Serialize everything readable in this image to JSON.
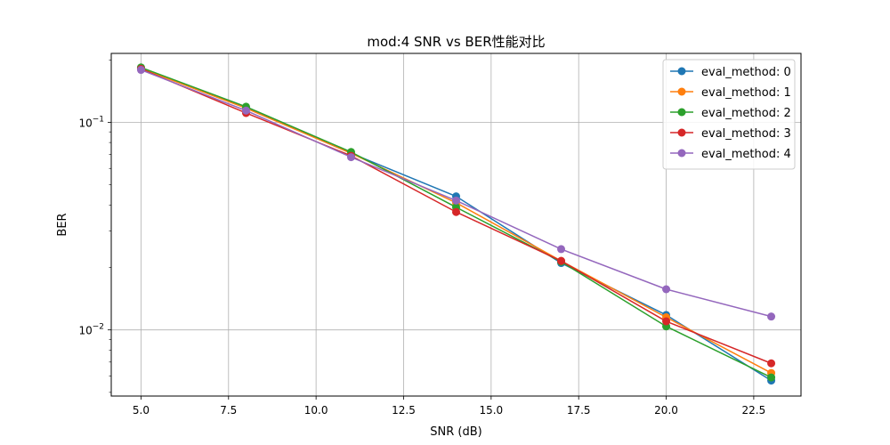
{
  "chart_data": {
    "type": "line",
    "title": "mod:4 SNR vs BER性能对比",
    "xlabel": "SNR (dB)",
    "ylabel": "BER",
    "yscale": "log",
    "xlim": [
      4.15,
      23.85
    ],
    "ylim": [
      0.0048,
      0.215
    ],
    "x_ticks": [
      5.0,
      7.5,
      10.0,
      12.5,
      15.0,
      17.5,
      20.0,
      22.5
    ],
    "x_tick_labels": [
      "5.0",
      "7.5",
      "10.0",
      "12.5",
      "15.0",
      "17.5",
      "20.0",
      "22.5"
    ],
    "y_ticks": [
      0.01,
      0.1
    ],
    "y_tick_labels": [
      {
        "base": "10",
        "exp": "−2"
      },
      {
        "base": "10",
        "exp": "−1"
      }
    ],
    "grid": true,
    "legend_position": "top-right",
    "x": [
      5,
      8,
      11,
      14,
      17,
      20,
      23
    ],
    "series": [
      {
        "name": "eval_method: 0",
        "color": "#1f77b4",
        "values": [
          0.183,
          0.118,
          0.071,
          0.044,
          0.021,
          0.0118,
          0.0057
        ]
      },
      {
        "name": "eval_method: 1",
        "color": "#ff7f0e",
        "values": [
          0.182,
          0.117,
          0.071,
          0.041,
          0.0215,
          0.0115,
          0.0062
        ]
      },
      {
        "name": "eval_method: 2",
        "color": "#2ca02c",
        "values": [
          0.184,
          0.119,
          0.072,
          0.039,
          0.0213,
          0.0104,
          0.0059
        ]
      },
      {
        "name": "eval_method: 3",
        "color": "#d62728",
        "values": [
          0.181,
          0.111,
          0.069,
          0.037,
          0.0215,
          0.011,
          0.0069
        ]
      },
      {
        "name": "eval_method: 4",
        "color": "#9467bd",
        "values": [
          0.179,
          0.114,
          0.068,
          0.042,
          0.0245,
          0.0157,
          0.0116
        ]
      }
    ]
  }
}
